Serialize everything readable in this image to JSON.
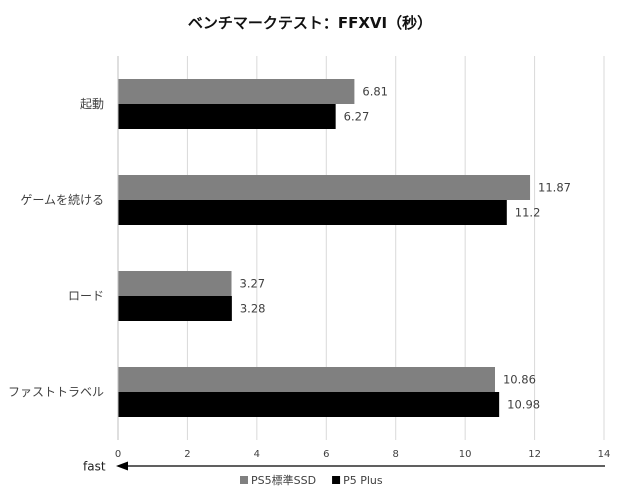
{
  "chart_data": {
    "type": "bar",
    "orientation": "horizontal",
    "title": "ベンチマークテスト：FFXVI（秒）",
    "categories": [
      "起動",
      "ゲームを続ける",
      "ロード",
      "ファストトラベル"
    ],
    "series": [
      {
        "name": "PS5標準SSD",
        "color": "#808080",
        "values": [
          6.81,
          11.87,
          3.27,
          10.86
        ]
      },
      {
        "name": "P5 Plus",
        "color": "#000000",
        "values": [
          6.27,
          11.2,
          3.28,
          10.98
        ]
      }
    ],
    "xlim": [
      0,
      14
    ],
    "xticks": [
      0,
      2,
      4,
      6,
      8,
      10,
      12,
      14
    ],
    "grid": true,
    "data_labels": true,
    "arrow_label": "fast",
    "legend_position": "bottom-center",
    "colors": {
      "gridline": "#d9d9d9",
      "axis": "#bfbfbf",
      "text": "#404040"
    }
  }
}
